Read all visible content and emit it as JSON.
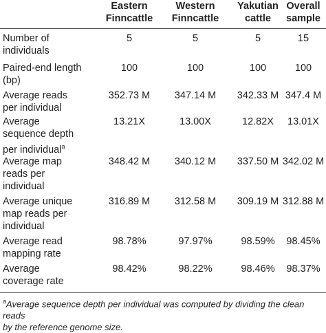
{
  "headers": [
    {
      "line1": "Eastern",
      "line2": "Finncattle"
    },
    {
      "line1": "Western",
      "line2": "Finncattle"
    },
    {
      "line1": "Yakutian",
      "line2": "cattle"
    },
    {
      "line1": "Overall",
      "line2": "sample"
    }
  ],
  "rows": [
    {
      "label_lines": [
        "Number of",
        "individuals"
      ],
      "values": [
        "5",
        "5",
        "5",
        "15"
      ]
    },
    {
      "label_lines": [
        "Paired-end length",
        "(bp)"
      ],
      "values": [
        "100",
        "100",
        "100",
        "100"
      ]
    },
    {
      "label_lines": [
        "Average reads",
        "per individual"
      ],
      "values": [
        "352.73 M",
        "347.14 M",
        "342.33 M",
        "347.4 M"
      ]
    },
    {
      "label_lines": [
        "Average",
        "sequence depth",
        "per individual"
      ],
      "sup": "a",
      "values": [
        "13.21X",
        "13.00X",
        "12.82X",
        "13.01X"
      ]
    },
    {
      "label_lines": [
        "Average map",
        "reads per",
        "individual"
      ],
      "values": [
        "348.42 M",
        "340.12 M",
        "337.50 M",
        "342.02 M"
      ]
    },
    {
      "label_lines": [
        "Average unique",
        "map reads per",
        "individual"
      ],
      "values": [
        "316.89 M",
        "312.58 M",
        "309.19 M",
        "312.88 M"
      ]
    },
    {
      "label_lines": [
        "Average read",
        "mapping rate"
      ],
      "values": [
        "98.78%",
        "97.97%",
        "98.59%",
        "98.45%"
      ]
    },
    {
      "label_lines": [
        "Average",
        "coverage rate"
      ],
      "values": [
        "98.42%",
        "98.22%",
        "98.46%",
        "98.37%"
      ]
    }
  ],
  "footnote": {
    "marker": "a",
    "line1": "Average sequence depth per individual was computed by dividing the clean reads",
    "line2": "by the reference genome size."
  }
}
